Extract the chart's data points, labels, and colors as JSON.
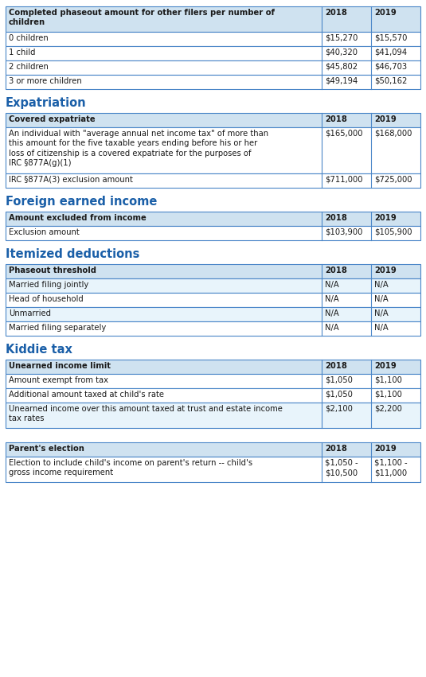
{
  "bg_color": "#ffffff",
  "header_bg": "#cfe2f0",
  "row_bg_white": "#ffffff",
  "row_bg_light": "#e8f4fb",
  "border_color": "#4a86c8",
  "text_color": "#1a1a1a",
  "section_color": "#1a5fa8",
  "font_size": 7.2,
  "section_font_size": 10.5,
  "table1_header": [
    "Completed phaseout amount for other filers per number of\nchildren",
    "2018",
    "2019"
  ],
  "table1_rows": [
    [
      "0 children",
      "$15,270",
      "$15,570"
    ],
    [
      "1 child",
      "$40,320",
      "$41,094"
    ],
    [
      "2 children",
      "$45,802",
      "$46,703"
    ],
    [
      "3 or more children",
      "$49,194",
      "$50,162"
    ]
  ],
  "section2": "Expatriation",
  "table2_header": [
    "Covered expatriate",
    "2018",
    "2019"
  ],
  "table2_rows": [
    [
      "An individual with \"average annual net income tax\" of more than\nthis amount for the five taxable years ending before his or her\nloss of citizenship is a covered expatriate for the purposes of\nIRC §877A(g)(1)",
      "$165,000",
      "$168,000"
    ],
    [
      "IRC §877A(3) exclusion amount",
      "$711,000",
      "$725,000"
    ]
  ],
  "section3": "Foreign earned income",
  "table3_header": [
    "Amount excluded from income",
    "2018",
    "2019"
  ],
  "table3_rows": [
    [
      "Exclusion amount",
      "$103,900",
      "$105,900"
    ]
  ],
  "section4": "Itemized deductions",
  "table4_header": [
    "Phaseout threshold",
    "2018",
    "2019"
  ],
  "table4_rows": [
    [
      "Married filing jointly",
      "N/A",
      "N/A"
    ],
    [
      "Head of household",
      "N/A",
      "N/A"
    ],
    [
      "Unmarried",
      "N/A",
      "N/A"
    ],
    [
      "Married filing separately",
      "N/A",
      "N/A"
    ]
  ],
  "table4_row_bgs": [
    "#e8f4fb",
    "#ffffff",
    "#e8f4fb",
    "#ffffff"
  ],
  "section5": "Kiddie tax",
  "table5_header": [
    "Unearned income limit",
    "2018",
    "2019"
  ],
  "table5_rows": [
    [
      "Amount exempt from tax",
      "$1,050",
      "$1,100"
    ],
    [
      "Additional amount taxed at child's rate",
      "$1,050",
      "$1,100"
    ],
    [
      "Unearned income over this amount taxed at trust and estate income\ntax rates",
      "$2,100",
      "$2,200"
    ]
  ],
  "table5_row_bgs": [
    "#ffffff",
    "#ffffff",
    "#e8f4fb"
  ],
  "table6_header": [
    "Parent's election",
    "2018",
    "2019"
  ],
  "table6_rows": [
    [
      "Election to include child's income on parent's return -- child's\ngross income requirement",
      "$1,050 -\n$10,500",
      "$1,100 -\n$11,000"
    ]
  ]
}
